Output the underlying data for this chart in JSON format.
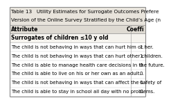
{
  "title_line1": "Table 13   Utility Estimates for Surrogate Outcomes Prefere",
  "title_line2": "Version of the Online Survey Stratified by the Child’s Age (n",
  "header_col1": "Attribute",
  "header_col2": "Coeffi",
  "section": "Surrogates of children ≤10 y old",
  "rows": [
    [
      "The child is not behaving in ways that can hurt him or her.",
      "1."
    ],
    [
      "The child is not behaving in ways that can hurt other children.",
      "1."
    ],
    [
      "The child is able to manage health care decisions in the future.",
      "0."
    ],
    [
      "The child is able to live on his or her own as an adult.",
      "0."
    ],
    [
      "The child is not behaving in ways that can affect the safety of",
      "0."
    ],
    [
      "The child is able to stay in school all day with no problems.",
      "0."
    ]
  ],
  "bg_title": "#e8e4dc",
  "bg_header": "#dedad2",
  "bg_section": "#f5f3ee",
  "bg_body": "#ffffff",
  "border_color": "#999999",
  "inner_line_color": "#cccccc",
  "text_color": "#000000",
  "title_fontsize": 5.2,
  "header_fontsize": 5.5,
  "section_fontsize": 5.5,
  "row_fontsize": 5.0,
  "col_split": 0.875
}
